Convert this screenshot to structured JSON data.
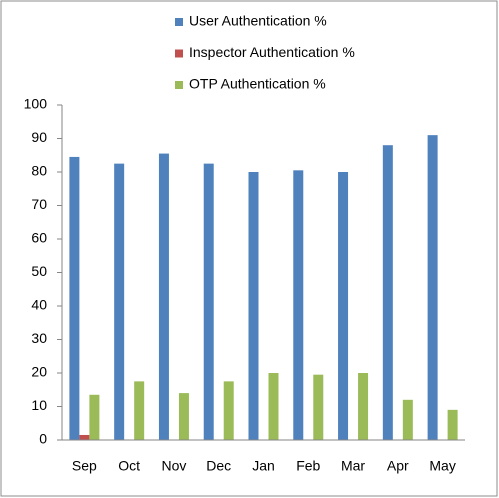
{
  "chart_data": {
    "type": "bar",
    "categories": [
      "Sep",
      "Oct",
      "Nov",
      "Dec",
      "Jan",
      "Feb",
      "Mar",
      "Apr",
      "May"
    ],
    "series": [
      {
        "name": "User Authentication %",
        "color": "#4f81bd",
        "values": [
          84.5,
          82.5,
          85.5,
          82.5,
          80,
          80.5,
          80,
          88,
          91
        ]
      },
      {
        "name": "Inspector Authentication %",
        "color": "#c0504d",
        "values": [
          1.5,
          0,
          0,
          0,
          0,
          0,
          0,
          0,
          0
        ]
      },
      {
        "name": "OTP Authentication %",
        "color": "#9bbb59",
        "values": [
          13.5,
          17.5,
          14,
          17.5,
          20,
          19.5,
          20,
          12,
          9
        ]
      }
    ],
    "ylim": [
      0,
      100
    ],
    "yticks": [
      0,
      10,
      20,
      30,
      40,
      50,
      60,
      70,
      80,
      90,
      100
    ],
    "grid": false,
    "legend": "top"
  }
}
